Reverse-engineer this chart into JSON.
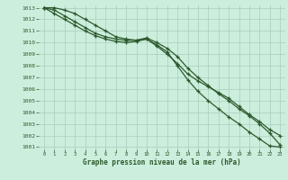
{
  "title": "Graphe pression niveau de la mer (hPa)",
  "background_color": "#cceedd",
  "grid_color": "#aaccbb",
  "line_color": "#2d5a2d",
  "x_values": [
    0,
    1,
    2,
    3,
    4,
    5,
    6,
    7,
    8,
    9,
    10,
    11,
    12,
    13,
    14,
    15,
    16,
    17,
    18,
    19,
    20,
    21,
    22,
    23
  ],
  "line1": [
    1013,
    1013,
    1012.8,
    1012.5,
    1012.0,
    1011.5,
    1011.0,
    1010.5,
    1010.3,
    1010.2,
    1010.3,
    1009.7,
    1009.0,
    1008.2,
    1007.3,
    1006.7,
    1006.2,
    1005.7,
    1005.2,
    1004.5,
    1003.8,
    1003.2,
    1002.5,
    1002.0
  ],
  "line2": [
    1013,
    1012.8,
    1012.3,
    1011.8,
    1011.3,
    1010.8,
    1010.5,
    1010.3,
    1010.2,
    1010.2,
    1010.4,
    1010.0,
    1009.5,
    1008.8,
    1007.8,
    1007.0,
    1006.3,
    1005.6,
    1005.0,
    1004.3,
    1003.7,
    1003.0,
    1002.2,
    1001.2
  ],
  "line3": [
    1013,
    1012.5,
    1012.0,
    1011.5,
    1011.0,
    1010.6,
    1010.3,
    1010.1,
    1010.0,
    1010.1,
    1010.3,
    1009.8,
    1009.2,
    1008.0,
    1006.8,
    1005.8,
    1005.0,
    1004.3,
    1003.6,
    1003.0,
    1002.3,
    1001.7,
    1001.1,
    1001.0
  ],
  "ylim_min": 1001,
  "ylim_max": 1013,
  "xlim_min": 0,
  "xlim_max": 23,
  "yticks": [
    1001,
    1002,
    1003,
    1004,
    1005,
    1006,
    1007,
    1008,
    1009,
    1010,
    1011,
    1012,
    1013
  ],
  "xticks": [
    0,
    1,
    2,
    3,
    4,
    5,
    6,
    7,
    8,
    9,
    10,
    11,
    12,
    13,
    14,
    15,
    16,
    17,
    18,
    19,
    20,
    21,
    22,
    23
  ],
  "title_fontsize": 5.5,
  "tick_fontsize": 4.5
}
